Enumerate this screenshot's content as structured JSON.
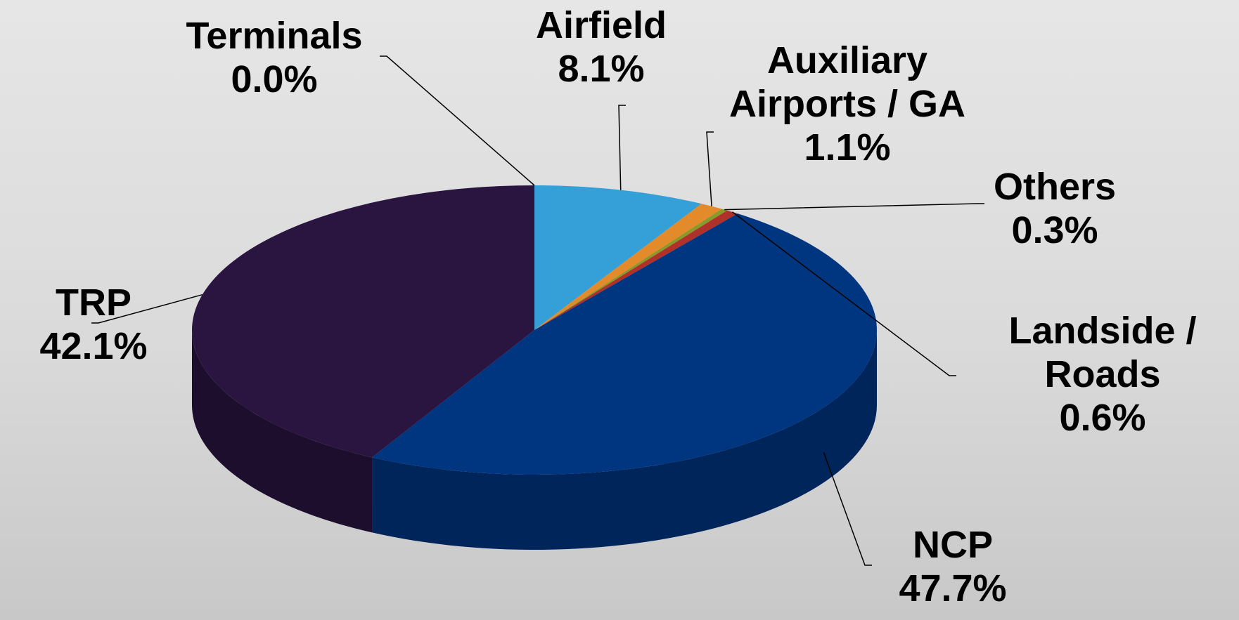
{
  "chart_data": {
    "type": "pie3d",
    "categories": [
      "Terminals",
      "Airfield",
      "Auxiliary Airports / GA",
      "Others",
      "Landside / Roads",
      "NCP",
      "TRP"
    ],
    "values": [
      0.0,
      8.1,
      1.1,
      0.3,
      0.6,
      47.7,
      42.1
    ],
    "value_labels": [
      "0.0%",
      "8.1%",
      "1.1%",
      "0.3%",
      "0.6%",
      "47.7%",
      "42.1%"
    ],
    "colors": [
      "#9bbb59",
      "#35a0d8",
      "#e38b2a",
      "#8a9a2a",
      "#b0302a",
      "#003580",
      "#2a1440"
    ]
  }
}
